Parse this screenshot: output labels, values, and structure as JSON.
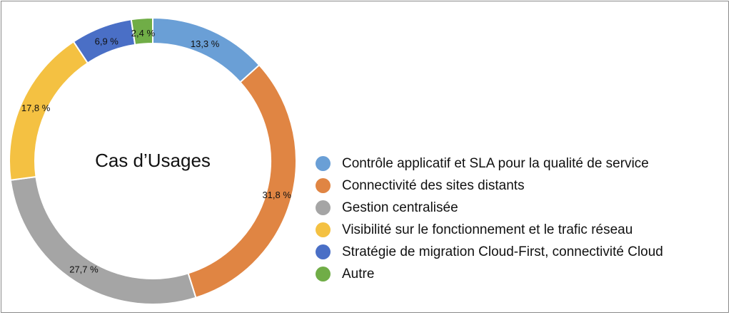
{
  "chart_data": {
    "type": "pie",
    "variant": "donut",
    "title": "",
    "center_label": "Cas d’Usages",
    "legend_position": "right",
    "slices": [
      {
        "name": "Contrôle applicatif et SLA pour la qualité de service",
        "value": 13.3,
        "label": "13,3 %",
        "color": "#6a9fd6"
      },
      {
        "name": "Connectivité des sites distants",
        "value": 31.8,
        "label": "31,8 %",
        "color": "#e08543"
      },
      {
        "name": "Gestion centralisée",
        "value": 27.7,
        "label": "27,7 %",
        "color": "#a5a5a5"
      },
      {
        "name": "Visibilité sur le fonctionnement et le trafic réseau",
        "value": 17.8,
        "label": "17,8 %",
        "color": "#f4c142"
      },
      {
        "name": "Stratégie de migration Cloud-First, connectivité Cloud",
        "value": 6.9,
        "label": "6,9 %",
        "color": "#4a6fc6"
      },
      {
        "name": "Autre",
        "value": 2.4,
        "label": "2,4 %",
        "color": "#70ad47"
      }
    ]
  }
}
